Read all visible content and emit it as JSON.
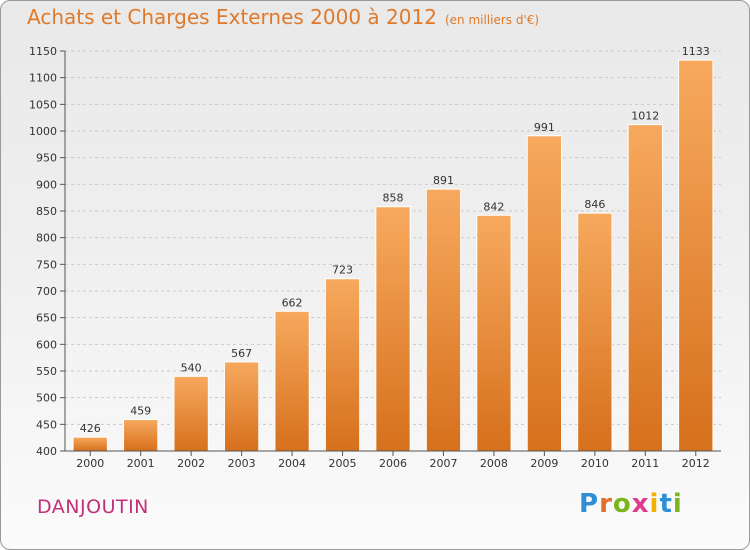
{
  "title": "Achats et Charges Externes 2000 à 2012",
  "subtitle": "(en milliers d'€)",
  "commune": "DANJOUTIN",
  "logo": {
    "letters": [
      "P",
      "r",
      "o",
      "x",
      "i",
      "t",
      "i"
    ],
    "colors": [
      "#2f8fd6",
      "#e0702a",
      "#7ab51d",
      "#e03a8c",
      "#f2b100",
      "#2f8fd6",
      "#7ab51d"
    ]
  },
  "colors": {
    "bar_light": "#f6a55a",
    "bar_dark": "#d9731f",
    "title": "#e07a2a",
    "commune": "#c3307a"
  },
  "chart_data": {
    "type": "bar",
    "title": "Achats et Charges Externes 2000 à 2012",
    "subtitle": "(en milliers d'€)",
    "categories": [
      "2000",
      "2001",
      "2002",
      "2003",
      "2004",
      "2005",
      "2006",
      "2007",
      "2008",
      "2009",
      "2010",
      "2011",
      "2012"
    ],
    "values": [
      426,
      459,
      540,
      567,
      662,
      723,
      858,
      891,
      842,
      991,
      846,
      1012,
      1133
    ],
    "ylim": [
      400,
      1150
    ],
    "yticks": [
      400,
      450,
      500,
      550,
      600,
      650,
      700,
      750,
      800,
      850,
      900,
      950,
      1000,
      1050,
      1100,
      1150
    ],
    "grid": true,
    "data_labels": true
  }
}
